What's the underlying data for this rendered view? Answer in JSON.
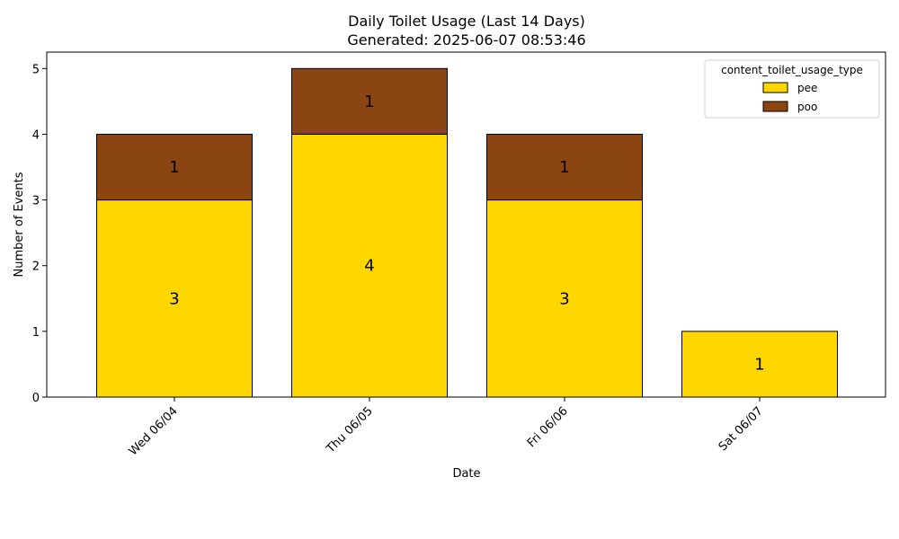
{
  "chart_data": {
    "type": "bar",
    "stacked": true,
    "title": "Daily Toilet Usage (Last 14 Days)",
    "subtitle": "Generated: 2025-06-07 08:53:46",
    "xlabel": "Date",
    "ylabel": "Number of Events",
    "categories": [
      "Wed 06/04",
      "Thu 06/05",
      "Fri 06/06",
      "Sat 06/07"
    ],
    "series": [
      {
        "name": "pee",
        "values": [
          3,
          4,
          3,
          1
        ],
        "color": "#FFD700"
      },
      {
        "name": "poo",
        "values": [
          1,
          1,
          1,
          0
        ],
        "color": "#8B4513"
      }
    ],
    "ylim": [
      0,
      5.25
    ],
    "yticks": [
      0,
      1,
      2,
      3,
      4,
      5
    ],
    "legend": {
      "title": "content_toilet_usage_type",
      "position": "top-right"
    },
    "grid": false
  }
}
